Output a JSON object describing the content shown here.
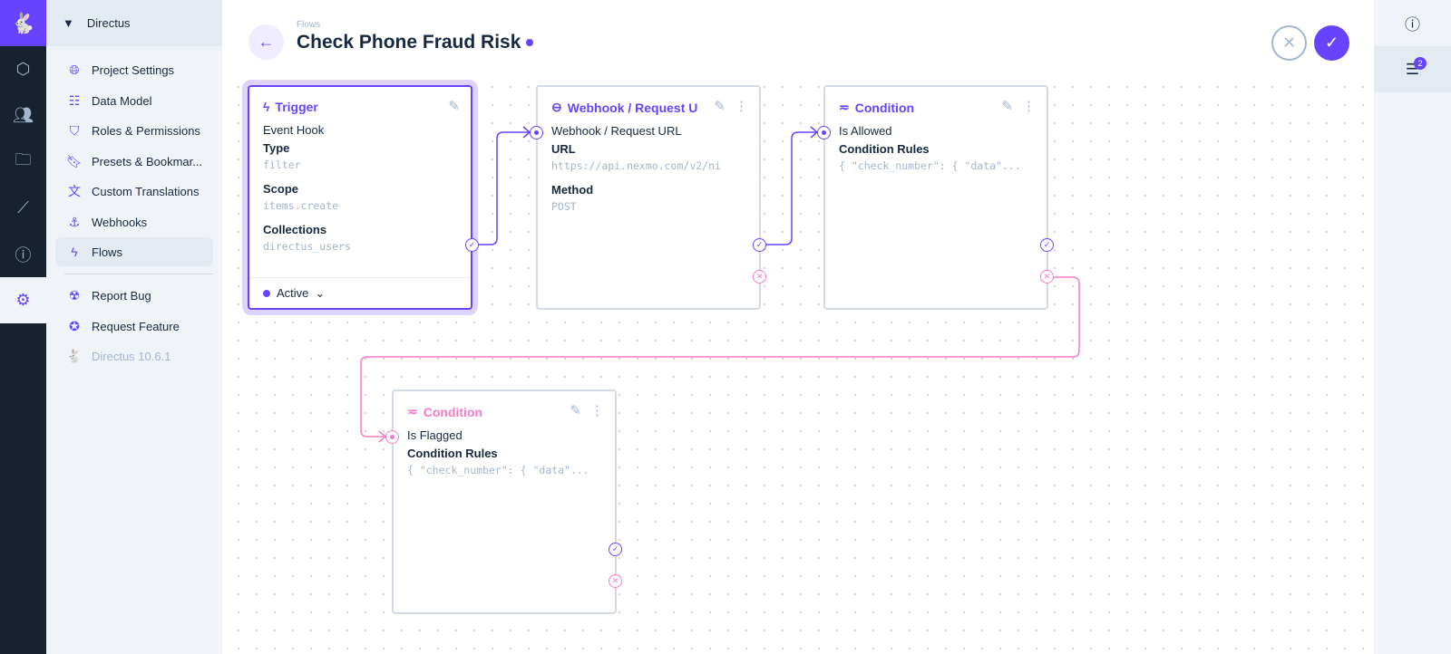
{
  "rail": {
    "items": [
      "content-icon",
      "users-icon",
      "files-icon",
      "insights-icon",
      "help-icon",
      "settings-icon"
    ]
  },
  "nav": {
    "project": "Directus",
    "items": [
      {
        "label": "Project Settings",
        "icon": "globe-icon"
      },
      {
        "label": "Data Model",
        "icon": "list-icon"
      },
      {
        "label": "Roles & Permissions",
        "icon": "shield-icon"
      },
      {
        "label": "Presets & Bookmar...",
        "icon": "bookmark-icon"
      },
      {
        "label": "Custom Translations",
        "icon": "translate-icon"
      },
      {
        "label": "Webhooks",
        "icon": "anchor-icon"
      },
      {
        "label": "Flows",
        "icon": "bolt-icon"
      },
      {
        "label": "Report Bug",
        "icon": "bug-icon"
      },
      {
        "label": "Request Feature",
        "icon": "verified-icon"
      },
      {
        "label": "Directus 10.6.1",
        "icon": "directus-logo-icon"
      }
    ]
  },
  "header": {
    "breadcrumb": "Flows",
    "title": "Check Phone Fraud Risk"
  },
  "sidebar_right": {
    "revisions_badge": "2"
  },
  "nodes": {
    "trigger": {
      "title": "Trigger",
      "type_name": "Event Hook",
      "fields": [
        {
          "label": "Type",
          "value": "filter"
        },
        {
          "label": "Scope",
          "value": "items.create"
        },
        {
          "label": "Collections",
          "value": "directus_users"
        }
      ],
      "status": "Active"
    },
    "webhook": {
      "title": "Webhook / Request U",
      "subtitle": "Webhook / Request URL",
      "fields": [
        {
          "label": "URL",
          "value": "https://api.nexmo.com/v2/ni"
        },
        {
          "label": "Method",
          "value": "POST"
        }
      ]
    },
    "condition1": {
      "title": "Condition",
      "subtitle": "Is Allowed",
      "fields": [
        {
          "label": "Condition Rules",
          "value": "{ \"check_number\": { \"data\"..."
        }
      ]
    },
    "condition2": {
      "title": "Condition",
      "subtitle": "Is Flagged",
      "fields": [
        {
          "label": "Condition Rules",
          "value": "{ \"check_number\": { \"data\"..."
        }
      ]
    }
  },
  "colors": {
    "accent": "#6644ff",
    "reject": "#f37bc8",
    "rail": "#18222f"
  }
}
